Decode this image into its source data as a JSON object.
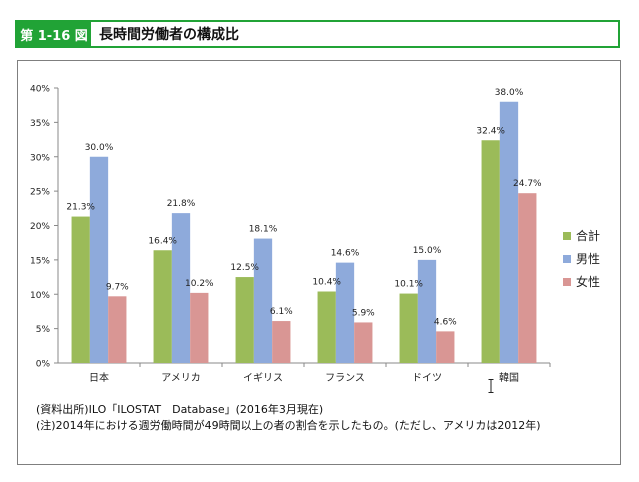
{
  "header": {
    "figure_label": "第 1-16 図",
    "title": "長時間労働者の構成比"
  },
  "notes": [
    "(資料出所)ILO「ILOSTAT　Database」(2016年3月現在)",
    "(注)2014年における週労働時間が49時間以上の者の割合を示したもの。(ただし、アメリカは2012年)"
  ],
  "chart_data": {
    "type": "bar",
    "title": "",
    "xlabel": "",
    "ylabel": "",
    "ylim": [
      0,
      40
    ],
    "yticks": [
      0,
      5,
      10,
      15,
      20,
      25,
      30,
      35,
      40
    ],
    "ytick_suffix": "%",
    "grid": false,
    "legend": "right",
    "categories": [
      "日本",
      "アメリカ",
      "イギリス",
      "フランス",
      "ドイツ",
      "韓国"
    ],
    "series": [
      {
        "name": "合計",
        "color": "#9bbb59",
        "values": [
          21.3,
          16.4,
          12.5,
          10.4,
          10.1,
          32.4
        ],
        "labels": [
          "21.3%",
          "16.4%",
          "12.5%",
          "10.4%",
          "10.1%",
          "32.4%"
        ]
      },
      {
        "name": "男性",
        "color": "#8eaadb",
        "values": [
          30.0,
          21.8,
          18.1,
          14.6,
          15.0,
          38.0
        ],
        "labels": [
          "30.0%",
          "21.8%",
          "18.1%",
          "14.6%",
          "15.0%",
          "38.0%"
        ]
      },
      {
        "name": "女性",
        "color": "#d99694",
        "values": [
          9.7,
          10.2,
          6.1,
          5.9,
          4.6,
          24.7
        ],
        "labels": [
          "9.7%",
          "10.2%",
          "6.1%",
          "5.9%",
          "4.6%",
          "24.7%"
        ]
      }
    ]
  }
}
